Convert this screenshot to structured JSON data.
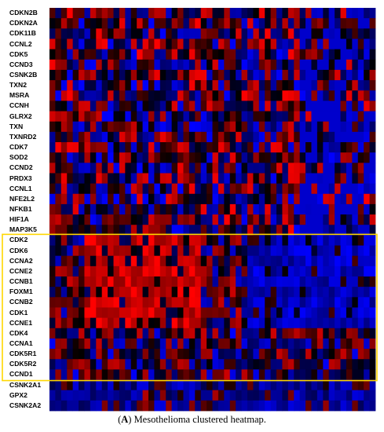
{
  "chart_data": {
    "type": "heatmap",
    "title": "",
    "xlabel": "",
    "ylabel": "",
    "color_scale": {
      "low": "#0000ff",
      "mid": "#000000",
      "high": "#ff0000"
    },
    "highlight_color": "#ffd700",
    "rows": [
      "CDKN2B",
      "CDKN2A",
      "CDK11B",
      "CCNL2",
      "CDK5",
      "CCND3",
      "CSNK2B",
      "TXN2",
      "MSRA",
      "CCNH",
      "GLRX2",
      "TXN",
      "TXNRD2",
      "CDK7",
      "SOD2",
      "CCND2",
      "PRDX3",
      "CCNL1",
      "NFE2L2",
      "NFKB1",
      "HIF1A",
      "MAP3K5",
      "CDK2",
      "CDK6",
      "CCNA2",
      "CCNE2",
      "CCNB1",
      "FOXM1",
      "CCNB2",
      "CDK1",
      "CCNE1",
      "CDK4",
      "CCNA1",
      "CDK5R1",
      "CDK5R2",
      "CCND1",
      "CSNK2A1",
      "GPX2",
      "CSNK2A2"
    ],
    "highlighted_rows": [
      "CDK2",
      "CDK6",
      "CCNA2",
      "CCNE2",
      "CCNB1",
      "FOXM1",
      "CCNB2",
      "CDK1",
      "CCNE1",
      "CDK4",
      "CCNA1",
      "CDK5R1",
      "CDK5R2",
      "CCND1"
    ],
    "column_count": 56,
    "row_pattern_summary": [
      {
        "rows": "CDKN2B-MAP3K5",
        "pattern": "mixed red/blue with blue dominance at right"
      },
      {
        "rows": "CDK2-CCNE1",
        "pattern": "red block over left-center columns, blue at right"
      },
      {
        "rows": "CDK4-CCND1",
        "pattern": "mixed red/blue, mostly dark"
      },
      {
        "rows": "CSNK2A1-CSNK2A2",
        "pattern": "mostly blue/dark"
      }
    ]
  },
  "caption": {
    "prefix": "(",
    "label": "A",
    "text": ") Mesothelioma clustered heatmap."
  }
}
